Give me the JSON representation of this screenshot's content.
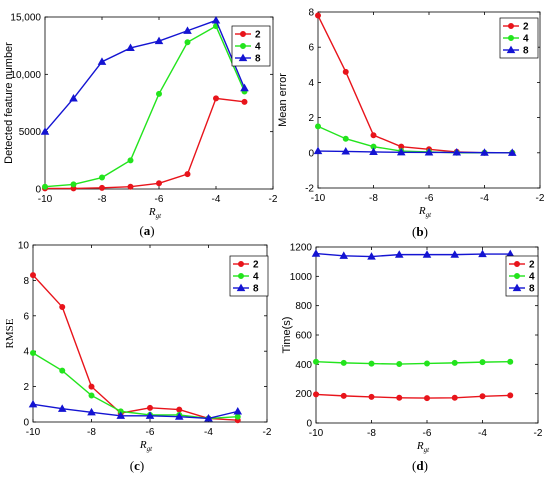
{
  "colors": {
    "2": "#e8141b",
    "4": "#23e41d",
    "8": "#1414d2"
  },
  "chart_data": [
    {
      "type": "line",
      "panel_label_left": "(",
      "panel_label_letter": "a",
      "panel_label_right": ")",
      "xlabel_main": "R",
      "xlabel_sub": "gt",
      "ylabel": "Detected feature number",
      "xlim": [
        -10,
        -2
      ],
      "ylim": [
        0,
        15000
      ],
      "xticks": [
        -10,
        -8,
        -6,
        -4,
        -2
      ],
      "xtick_labels": [
        "-10",
        "-8",
        "-6",
        "-4",
        "-2"
      ],
      "yticks": [
        0,
        5000,
        10000,
        15000
      ],
      "ytick_labels": [
        "0",
        "5000",
        "10,000",
        "15,000"
      ],
      "legend_position": "top-right",
      "x": [
        -10,
        -9,
        -8,
        -7,
        -6,
        -5,
        -4,
        -3
      ],
      "series": [
        {
          "name": "2",
          "marker": "circle",
          "values": [
            50,
            50,
            100,
            200,
            500,
            1300,
            7900,
            7600
          ]
        },
        {
          "name": "4",
          "marker": "circle",
          "values": [
            200,
            400,
            1000,
            2500,
            8300,
            12800,
            14200,
            8500
          ]
        },
        {
          "name": "8",
          "marker": "triangle",
          "values": [
            5000,
            7900,
            11100,
            12300,
            12900,
            13800,
            14700,
            8800
          ]
        }
      ]
    },
    {
      "type": "line",
      "panel_label_left": "(",
      "panel_label_letter": "b",
      "panel_label_right": ")",
      "xlabel_main": "R",
      "xlabel_sub": "gt",
      "ylabel": "Mean error",
      "xlim": [
        -10,
        -2
      ],
      "ylim": [
        -2,
        8
      ],
      "xticks": [
        -10,
        -8,
        -6,
        -4,
        -2
      ],
      "xtick_labels": [
        "-10",
        "-8",
        "-6",
        "-4",
        "-2"
      ],
      "yticks": [
        -2,
        0,
        2,
        4,
        6,
        8
      ],
      "ytick_labels": [
        "-2",
        "0",
        "2",
        "4",
        "6",
        "8"
      ],
      "legend_position": "top-right",
      "x": [
        -10,
        -9,
        -8,
        -7,
        -6,
        -5,
        -4,
        -3
      ],
      "series": [
        {
          "name": "2",
          "marker": "circle",
          "values": [
            7.8,
            4.6,
            1.0,
            0.35,
            0.2,
            0.05,
            0.0,
            0.0
          ]
        },
        {
          "name": "4",
          "marker": "circle",
          "values": [
            1.5,
            0.8,
            0.35,
            0.1,
            0.05,
            0.0,
            0.0,
            0.0
          ]
        },
        {
          "name": "8",
          "marker": "triangle",
          "values": [
            0.1,
            0.08,
            0.05,
            0.03,
            0.02,
            0.02,
            0.01,
            0.0
          ]
        }
      ]
    },
    {
      "type": "line",
      "panel_label_left": "(",
      "panel_label_letter": "c",
      "panel_label_right": ")",
      "xlabel_main": "R",
      "xlabel_sub": "gt",
      "ylabel": "RMSE",
      "xlim": [
        -10,
        -2
      ],
      "ylim": [
        0,
        10
      ],
      "xticks": [
        -10,
        -8,
        -6,
        -4,
        -2
      ],
      "xtick_labels": [
        "-10",
        "-8",
        "-6",
        "-4",
        "-2"
      ],
      "yticks": [
        0,
        2,
        4,
        6,
        8,
        10
      ],
      "ytick_labels": [
        "0",
        "2",
        "4",
        "6",
        "8",
        "10"
      ],
      "legend_position": "top-right",
      "x": [
        -10,
        -9,
        -8,
        -7,
        -6,
        -5,
        -4,
        -3
      ],
      "series": [
        {
          "name": "2",
          "marker": "circle",
          "values": [
            8.3,
            6.5,
            2.0,
            0.5,
            0.8,
            0.7,
            0.2,
            0.1
          ]
        },
        {
          "name": "4",
          "marker": "circle",
          "values": [
            3.9,
            2.9,
            1.5,
            0.6,
            0.4,
            0.4,
            0.2,
            0.3
          ]
        },
        {
          "name": "8",
          "marker": "triangle",
          "values": [
            1.0,
            0.75,
            0.55,
            0.35,
            0.35,
            0.3,
            0.2,
            0.6
          ]
        }
      ]
    },
    {
      "type": "line",
      "panel_label_left": "(",
      "panel_label_letter": "d",
      "panel_label_right": ")",
      "xlabel_main": "R",
      "xlabel_sub": "gt",
      "ylabel": "Time(s)",
      "xlim": [
        -10,
        -2
      ],
      "ylim": [
        0,
        1200
      ],
      "xticks": [
        -10,
        -8,
        -6,
        -4,
        -2
      ],
      "xtick_labels": [
        "-10",
        "-8",
        "-6",
        "-4",
        "-2"
      ],
      "yticks": [
        0,
        200,
        400,
        600,
        800,
        1000,
        1200
      ],
      "ytick_labels": [
        "0",
        "200",
        "400",
        "600",
        "800",
        "1000",
        "1200"
      ],
      "legend_position": "upper-right",
      "x": [
        -10,
        -9,
        -8,
        -7,
        -6,
        -5,
        -4,
        -3
      ],
      "series": [
        {
          "name": "2",
          "marker": "circle",
          "values": [
            195,
            185,
            178,
            172,
            170,
            172,
            182,
            188
          ]
        },
        {
          "name": "4",
          "marker": "circle",
          "values": [
            418,
            410,
            405,
            402,
            406,
            410,
            415,
            418
          ]
        },
        {
          "name": "8",
          "marker": "triangle",
          "values": [
            1155,
            1140,
            1135,
            1148,
            1148,
            1148,
            1152,
            1152
          ]
        }
      ]
    }
  ]
}
